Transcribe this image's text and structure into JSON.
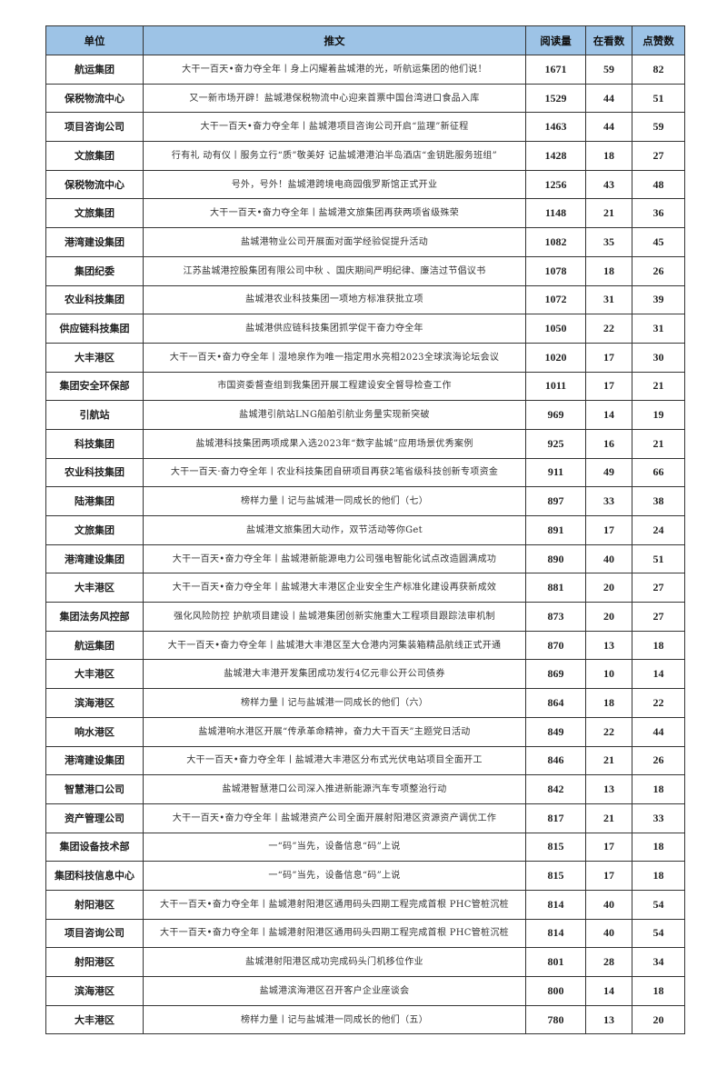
{
  "table": {
    "headers": [
      "单位",
      "推文",
      "阅读量",
      "在看数",
      "点赞数"
    ],
    "header_color": "#9dc3e6",
    "rows": [
      [
        "航运集团",
        "大干一百天•奋力夺全年丨身上闪耀着盐城港的光，听航运集团的他们说！",
        "1671",
        "59",
        "82"
      ],
      [
        "保税物流中心",
        "又一新市场开辟！盐城港保税物流中心迎来首票中国台湾进口食品入库",
        "1529",
        "44",
        "51"
      ],
      [
        "项目咨询公司",
        "大干一百天•奋力夺全年丨盐城港项目咨询公司开启“监理”新征程",
        "1463",
        "44",
        "59"
      ],
      [
        "文旅集团",
        "行有礼 动有仪丨服务立行“质”敬美好 记盐城港港泊半岛酒店“金钥匙服务班组”",
        "1428",
        "18",
        "27"
      ],
      [
        "保税物流中心",
        "号外，号外！盐城港跨境电商园俄罗斯馆正式开业",
        "1256",
        "43",
        "48"
      ],
      [
        "文旅集团",
        "大干一百天•奋力夺全年丨盐城港文旅集团再获两项省级殊荣",
        "1148",
        "21",
        "36"
      ],
      [
        "港湾建设集团",
        "盐城港物业公司开展面对面学经验促提升活动",
        "1082",
        "35",
        "45"
      ],
      [
        "集团纪委",
        "江苏盐城港控股集团有限公司中秋 、国庆期间严明纪律、廉洁过节倡议书",
        "1078",
        "18",
        "26"
      ],
      [
        "农业科技集团",
        "盐城港农业科技集团一项地方标准获批立项",
        "1072",
        "31",
        "39"
      ],
      [
        "供应链科技集团",
        "盐城港供应链科技集团抓学促干奋力夺全年",
        "1050",
        "22",
        "31"
      ],
      [
        "大丰港区",
        "大干一百天•奋力夺全年丨湿地泉作为唯一指定用水亮相2023全球滨海论坛会议",
        "1020",
        "17",
        "30"
      ],
      [
        "集团安全环保部",
        "市国资委督查组到我集团开展工程建设安全督导检查工作",
        "1011",
        "17",
        "21"
      ],
      [
        "引航站",
        "盐城港引航站LNG船舶引航业务量实现新突破",
        "969",
        "14",
        "19"
      ],
      [
        "科技集团",
        "盐城港科技集团两项成果入选2023年“数字盐城”应用场景优秀案例",
        "925",
        "16",
        "21"
      ],
      [
        "农业科技集团",
        "大干一百天·奋力夺全年丨农业科技集团自研项目再获2笔省级科技创新专项资金",
        "911",
        "49",
        "66"
      ],
      [
        "陆港集团",
        "榜样力量丨记与盐城港一同成长的他们（七）",
        "897",
        "33",
        "38"
      ],
      [
        "文旅集团",
        "盐城港文旅集团大动作，双节活动等你Get",
        "891",
        "17",
        "24"
      ],
      [
        "港湾建设集团",
        "大干一百天•奋力夺全年丨盐城港新能源电力公司强电智能化试点改造圆满成功",
        "890",
        "40",
        "51"
      ],
      [
        "大丰港区",
        "大干一百天•奋力夺全年丨盐城港大丰港区企业安全生产标准化建设再获新成效",
        "881",
        "20",
        "27"
      ],
      [
        "集团法务风控部",
        "强化风险防控 护航项目建设丨盐城港集团创新实施重大工程项目跟踪法审机制",
        "873",
        "20",
        "27"
      ],
      [
        "航运集团",
        "大干一百天•奋力夺全年丨盐城港大丰港区至大仓港内河集装箱精品航线正式开通",
        "870",
        "13",
        "18"
      ],
      [
        "大丰港区",
        "盐城港大丰港开发集团成功发行4亿元非公开公司债券",
        "869",
        "10",
        "14"
      ],
      [
        "滨海港区",
        "榜样力量丨记与盐城港一同成长的他们（六）",
        "864",
        "18",
        "22"
      ],
      [
        "响水港区",
        "盐城港响水港区开展“传承革命精神，奋力大干百天”主题党日活动",
        "849",
        "22",
        "44"
      ],
      [
        "港湾建设集团",
        "大干一百天•奋力夺全年丨盐城港大丰港区分布式光伏电站项目全面开工",
        "846",
        "21",
        "26"
      ],
      [
        "智慧港口公司",
        "盐城港智慧港口公司深入推进新能源汽车专项整治行动",
        "842",
        "13",
        "18"
      ],
      [
        "资产管理公司",
        "大干一百天•奋力夺全年丨盐城港资产公司全面开展射阳港区资源资产调优工作",
        "817",
        "21",
        "33"
      ],
      [
        "集团设备技术部",
        "一“码”当先，设备信息“码”上说",
        "815",
        "17",
        "18"
      ],
      [
        "集团科技信息中心",
        "一“码”当先，设备信息“码”上说",
        "815",
        "17",
        "18"
      ],
      [
        "射阳港区",
        "大干一百天•奋力夺全年丨盐城港射阳港区通用码头四期工程完成首根 PHC管桩沉桩",
        "814",
        "40",
        "54"
      ],
      [
        "项目咨询公司",
        "大干一百天•奋力夺全年丨盐城港射阳港区通用码头四期工程完成首根 PHC管桩沉桩",
        "814",
        "40",
        "54"
      ],
      [
        "射阳港区",
        "盐城港射阳港区成功完成码头门机移位作业",
        "801",
        "28",
        "34"
      ],
      [
        "滨海港区",
        "盐城港滨海港区召开客户企业座谈会",
        "800",
        "14",
        "18"
      ],
      [
        "大丰港区",
        "榜样力量丨记与盐城港一同成长的他们（五）",
        "780",
        "13",
        "20"
      ]
    ]
  }
}
